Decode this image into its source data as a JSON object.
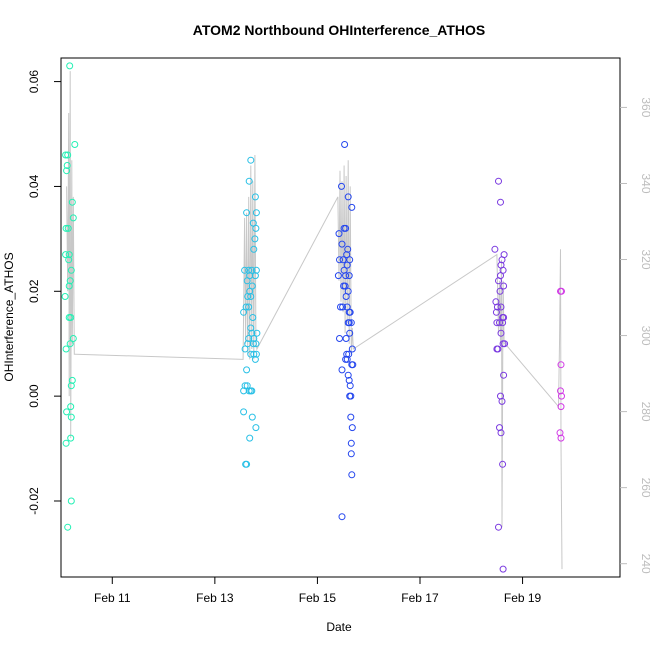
{
  "chart_data": {
    "type": "scatter",
    "title": "ATOM2 Northbound OHInterference_ATHOS",
    "xlabel": "Date",
    "ylabel": "OHInterference_ATHOS",
    "x_unit": "day of February",
    "xlim": [
      10.0,
      20.9
    ],
    "ylim": [
      -0.0345,
      0.0645
    ],
    "y2lim": [
      236.5,
      373
    ],
    "x_ticks": [
      {
        "value": 11,
        "label": "Feb 11"
      },
      {
        "value": 13,
        "label": "Feb 13"
      },
      {
        "value": 15,
        "label": "Feb 15"
      },
      {
        "value": 17,
        "label": "Feb 17"
      },
      {
        "value": 19,
        "label": "Feb 19"
      }
    ],
    "y_ticks": [
      {
        "value": -0.02,
        "label": "-0.02"
      },
      {
        "value": 0.0,
        "label": "0.00"
      },
      {
        "value": 0.02,
        "label": "0.02"
      },
      {
        "value": 0.04,
        "label": "0.04"
      },
      {
        "value": 0.06,
        "label": "0.06"
      }
    ],
    "y2_ticks": [
      {
        "value": 240,
        "label": "240"
      },
      {
        "value": 260,
        "label": "260"
      },
      {
        "value": 280,
        "label": "280"
      },
      {
        "value": 300,
        "label": "300"
      },
      {
        "value": 320,
        "label": "320"
      },
      {
        "value": 340,
        "label": "340"
      },
      {
        "value": 360,
        "label": "360"
      }
    ],
    "colors": {
      "axis": "#000000",
      "secondary_axis": "#bdbdbd",
      "trace": "#c8c8c8",
      "group1": "#22f0b4",
      "group2": "#29c0e6",
      "group3": "#2446ee",
      "group4": "#7a3ae0",
      "group5": "#d23ae6"
    },
    "points": [
      {
        "group": 1,
        "data": [
          [
            10.17,
            0.063
          ],
          [
            10.13,
            0.046
          ],
          [
            10.09,
            0.046
          ],
          [
            10.12,
            0.044
          ],
          [
            10.11,
            0.043
          ],
          [
            10.27,
            0.048
          ],
          [
            10.22,
            0.037
          ],
          [
            10.24,
            0.034
          ],
          [
            10.14,
            0.032
          ],
          [
            10.1,
            0.032
          ],
          [
            10.16,
            0.027
          ],
          [
            10.09,
            0.027
          ],
          [
            10.2,
            0.024
          ],
          [
            10.18,
            0.022
          ],
          [
            10.16,
            0.021
          ],
          [
            10.08,
            0.019
          ],
          [
            10.19,
            0.015
          ],
          [
            10.16,
            0.015
          ],
          [
            10.24,
            0.011
          ],
          [
            10.18,
            0.01
          ],
          [
            10.1,
            0.009
          ],
          [
            10.22,
            0.003
          ],
          [
            10.2,
            0.002
          ],
          [
            10.19,
            -0.002
          ],
          [
            10.11,
            -0.003
          ],
          [
            10.2,
            -0.004
          ],
          [
            10.19,
            -0.008
          ],
          [
            10.1,
            -0.009
          ],
          [
            10.2,
            -0.02
          ],
          [
            10.13,
            -0.025
          ],
          [
            10.15,
            0.026
          ]
        ]
      },
      {
        "group": 2,
        "data": [
          [
            13.7,
            0.045
          ],
          [
            13.67,
            0.041
          ],
          [
            13.79,
            0.038
          ],
          [
            13.62,
            0.035
          ],
          [
            13.81,
            0.035
          ],
          [
            13.75,
            0.033
          ],
          [
            13.8,
            0.032
          ],
          [
            13.78,
            0.03
          ],
          [
            13.76,
            0.028
          ],
          [
            13.58,
            0.024
          ],
          [
            13.66,
            0.024
          ],
          [
            13.72,
            0.024
          ],
          [
            13.81,
            0.024
          ],
          [
            13.68,
            0.023
          ],
          [
            13.63,
            0.022
          ],
          [
            13.79,
            0.023
          ],
          [
            13.73,
            0.021
          ],
          [
            13.68,
            0.02
          ],
          [
            13.7,
            0.019
          ],
          [
            13.64,
            0.019
          ],
          [
            13.66,
            0.017
          ],
          [
            13.61,
            0.017
          ],
          [
            13.56,
            0.016
          ],
          [
            13.74,
            0.015
          ],
          [
            13.7,
            0.013
          ],
          [
            13.72,
            0.012
          ],
          [
            13.82,
            0.012
          ],
          [
            13.76,
            0.011
          ],
          [
            13.66,
            0.011
          ],
          [
            13.8,
            0.01
          ],
          [
            13.64,
            0.01
          ],
          [
            13.75,
            0.01
          ],
          [
            13.59,
            0.009
          ],
          [
            13.76,
            0.008
          ],
          [
            13.7,
            0.008
          ],
          [
            13.81,
            0.008
          ],
          [
            13.79,
            0.007
          ],
          [
            13.62,
            0.005
          ],
          [
            13.59,
            0.002
          ],
          [
            13.63,
            0.002
          ],
          [
            13.67,
            0.001
          ],
          [
            13.56,
            0.001
          ],
          [
            13.7,
            0.001
          ],
          [
            13.72,
            0.001
          ],
          [
            13.56,
            -0.003
          ],
          [
            13.73,
            -0.004
          ],
          [
            13.8,
            -0.006
          ],
          [
            13.68,
            -0.008
          ],
          [
            13.6,
            -0.013
          ],
          [
            13.62,
            -0.013
          ]
        ]
      },
      {
        "group": 3,
        "data": [
          [
            15.53,
            0.048
          ],
          [
            15.47,
            0.04
          ],
          [
            15.6,
            0.038
          ],
          [
            15.67,
            0.036
          ],
          [
            15.42,
            0.031
          ],
          [
            15.52,
            0.032
          ],
          [
            15.55,
            0.032
          ],
          [
            15.48,
            0.029
          ],
          [
            15.59,
            0.028
          ],
          [
            15.57,
            0.027
          ],
          [
            15.43,
            0.026
          ],
          [
            15.5,
            0.026
          ],
          [
            15.63,
            0.026
          ],
          [
            15.58,
            0.025
          ],
          [
            15.52,
            0.024
          ],
          [
            15.41,
            0.023
          ],
          [
            15.55,
            0.023
          ],
          [
            15.62,
            0.023
          ],
          [
            15.51,
            0.021
          ],
          [
            15.54,
            0.021
          ],
          [
            15.6,
            0.02
          ],
          [
            15.56,
            0.019
          ],
          [
            15.45,
            0.017
          ],
          [
            15.58,
            0.017
          ],
          [
            15.49,
            0.017
          ],
          [
            15.62,
            0.016
          ],
          [
            15.64,
            0.016
          ],
          [
            15.6,
            0.014
          ],
          [
            15.62,
            0.014
          ],
          [
            15.66,
            0.014
          ],
          [
            15.43,
            0.011
          ],
          [
            15.56,
            0.011
          ],
          [
            15.63,
            0.012
          ],
          [
            15.68,
            0.009
          ],
          [
            15.57,
            0.008
          ],
          [
            15.61,
            0.008
          ],
          [
            15.55,
            0.007
          ],
          [
            15.58,
            0.007
          ],
          [
            15.67,
            0.006
          ],
          [
            15.69,
            0.006
          ],
          [
            15.48,
            0.005
          ],
          [
            15.6,
            0.004
          ],
          [
            15.62,
            0.003
          ],
          [
            15.64,
            0.002
          ],
          [
            15.63,
            0.0
          ],
          [
            15.65,
            0.0
          ],
          [
            15.65,
            -0.004
          ],
          [
            15.68,
            -0.006
          ],
          [
            15.66,
            -0.009
          ],
          [
            15.66,
            -0.011
          ],
          [
            15.67,
            -0.015
          ],
          [
            15.48,
            -0.023
          ]
        ]
      },
      {
        "group": 4,
        "data": [
          [
            18.53,
            0.041
          ],
          [
            18.57,
            0.037
          ],
          [
            18.46,
            0.028
          ],
          [
            18.64,
            0.027
          ],
          [
            18.6,
            0.026
          ],
          [
            18.58,
            0.025
          ],
          [
            18.62,
            0.024
          ],
          [
            18.57,
            0.023
          ],
          [
            18.53,
            0.022
          ],
          [
            18.63,
            0.021
          ],
          [
            18.56,
            0.02
          ],
          [
            18.48,
            0.018
          ],
          [
            18.58,
            0.017
          ],
          [
            18.51,
            0.017
          ],
          [
            18.49,
            0.016
          ],
          [
            18.61,
            0.015
          ],
          [
            18.63,
            0.015
          ],
          [
            18.5,
            0.014
          ],
          [
            18.55,
            0.014
          ],
          [
            18.61,
            0.014
          ],
          [
            18.58,
            0.012
          ],
          [
            18.62,
            0.01
          ],
          [
            18.65,
            0.01
          ],
          [
            18.52,
            0.009
          ],
          [
            18.5,
            0.009
          ],
          [
            18.63,
            0.004
          ],
          [
            18.57,
            0.0
          ],
          [
            18.6,
            -0.001
          ],
          [
            18.55,
            -0.006
          ],
          [
            18.58,
            -0.007
          ],
          [
            18.61,
            -0.013
          ],
          [
            18.53,
            -0.025
          ],
          [
            18.62,
            -0.033
          ]
        ]
      },
      {
        "group": 5,
        "data": [
          [
            19.74,
            0.02
          ],
          [
            19.76,
            0.02
          ],
          [
            19.75,
            0.006
          ],
          [
            19.74,
            0.001
          ],
          [
            19.76,
            0.0
          ],
          [
            19.75,
            -0.002
          ],
          [
            19.73,
            -0.007
          ],
          [
            19.75,
            -0.008
          ]
        ]
      }
    ],
    "trace": [
      [
        10.11,
        0.04
      ],
      [
        10.13,
        0.02
      ],
      [
        10.15,
        0.054
      ],
      [
        10.16,
        0.0
      ],
      [
        10.18,
        0.062
      ],
      [
        10.19,
        -0.008
      ],
      [
        10.21,
        0.045
      ],
      [
        10.22,
        0.01
      ],
      [
        10.24,
        0.038
      ],
      [
        10.26,
        0.008
      ],
      [
        10.28,
        0.008
      ],
      [
        13.55,
        0.007
      ],
      [
        13.58,
        0.034
      ],
      [
        13.6,
        0.01
      ],
      [
        13.62,
        0.035
      ],
      [
        13.64,
        0.008
      ],
      [
        13.66,
        0.038
      ],
      [
        13.68,
        0.007
      ],
      [
        13.7,
        0.044
      ],
      [
        13.72,
        0.009
      ],
      [
        13.74,
        0.041
      ],
      [
        13.76,
        0.007
      ],
      [
        13.78,
        0.046
      ],
      [
        13.8,
        0.011
      ],
      [
        13.82,
        0.009
      ],
      [
        15.4,
        0.038
      ],
      [
        15.42,
        0.022
      ],
      [
        15.44,
        0.043
      ],
      [
        15.46,
        0.018
      ],
      [
        15.48,
        0.041
      ],
      [
        15.5,
        0.016
      ],
      [
        15.52,
        0.044
      ],
      [
        15.54,
        0.012
      ],
      [
        15.56,
        0.042
      ],
      [
        15.58,
        0.014
      ],
      [
        15.6,
        0.045
      ],
      [
        15.62,
        0.01
      ],
      [
        15.64,
        0.04
      ],
      [
        15.66,
        0.008
      ],
      [
        15.68,
        0.013
      ],
      [
        15.7,
        0.009
      ],
      [
        18.5,
        0.027
      ],
      [
        18.53,
        0.012
      ],
      [
        18.55,
        0.022
      ],
      [
        18.57,
        0.01
      ],
      [
        18.59,
        0.026
      ],
      [
        18.6,
        -0.025
      ],
      [
        18.62,
        0.022
      ],
      [
        18.64,
        0.01
      ],
      [
        18.66,
        0.01
      ],
      [
        19.7,
        -0.002
      ],
      [
        19.72,
        0.01
      ],
      [
        19.74,
        0.028
      ],
      [
        19.75,
        -0.009
      ],
      [
        19.77,
        -0.033
      ]
    ]
  }
}
